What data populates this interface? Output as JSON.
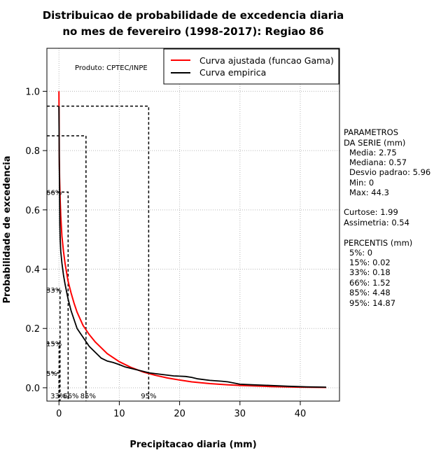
{
  "chart_data": {
    "type": "line",
    "title": [
      "Distribuicao de probabilidade de excedencia diaria",
      "no mes de fevereiro (1998-2017): Regiao 86"
    ],
    "xlabel": "Precipitacao diaria (mm)",
    "ylabel": "Probabilidade de excedencia",
    "xlim": [
      -2,
      46.5
    ],
    "ylim": [
      -0.045,
      1.145
    ],
    "x_ticks": [
      0,
      10,
      20,
      30,
      40
    ],
    "x_tick_labels": [
      "0",
      "10",
      "20",
      "30",
      "40"
    ],
    "y_ticks": [
      0.0,
      0.2,
      0.4,
      0.6,
      0.8,
      1.0
    ],
    "y_tick_labels": [
      "0.0",
      "0.2",
      "0.4",
      "0.6",
      "0.8",
      "1.0"
    ],
    "grid": true,
    "product_label": "Produto: CPTEC/INPE",
    "legend": {
      "position": "top-right",
      "entries": [
        {
          "label": "Curva ajustada (funcao Gama)",
          "color": "#ff0000"
        },
        {
          "label": "Curva empirica",
          "color": "#000000"
        }
      ]
    },
    "series": [
      {
        "name": "Curva ajustada (funcao Gama)",
        "color": "#ff0000",
        "x": [
          0,
          0.05,
          0.1,
          0.2,
          0.3,
          0.5,
          0.75,
          1.0,
          1.5,
          2,
          2.5,
          3,
          4,
          5,
          6,
          7,
          8,
          10,
          12,
          14,
          16,
          18,
          20,
          22,
          25,
          28,
          30,
          35,
          40,
          44.3
        ],
        "y": [
          1.0,
          0.78,
          0.71,
          0.63,
          0.58,
          0.51,
          0.46,
          0.42,
          0.36,
          0.32,
          0.285,
          0.255,
          0.21,
          0.18,
          0.155,
          0.135,
          0.115,
          0.088,
          0.068,
          0.053,
          0.042,
          0.033,
          0.026,
          0.02,
          0.014,
          0.01,
          0.008,
          0.004,
          0.002,
          0.001
        ]
      },
      {
        "name": "Curva empirica",
        "color": "#000000",
        "x": [
          0,
          0.05,
          0.1,
          0.15,
          0.2,
          0.3,
          0.5,
          0.75,
          1.0,
          1.5,
          2,
          2.5,
          3,
          3.5,
          4,
          5,
          6,
          7,
          8,
          9,
          10,
          11,
          12,
          13,
          14,
          15,
          17,
          19,
          21,
          22,
          23,
          25,
          27,
          28,
          30,
          32,
          35,
          38,
          41,
          44.3
        ],
        "y": [
          0.95,
          0.75,
          0.66,
          0.55,
          0.5,
          0.46,
          0.42,
          0.38,
          0.35,
          0.3,
          0.26,
          0.23,
          0.2,
          0.185,
          0.17,
          0.14,
          0.12,
          0.1,
          0.09,
          0.085,
          0.078,
          0.07,
          0.065,
          0.06,
          0.055,
          0.05,
          0.045,
          0.04,
          0.038,
          0.035,
          0.03,
          0.025,
          0.022,
          0.02,
          0.012,
          0.01,
          0.008,
          0.005,
          0.003,
          0.002
        ]
      }
    ],
    "percentile_markers": [
      {
        "label": "5%",
        "x": 0,
        "y": 0.05,
        "x_label": "33%"
      },
      {
        "label": "15%",
        "x": 0.02,
        "y": 0.15,
        "x_label": "66%"
      },
      {
        "label": "33%",
        "x": 0.18,
        "y": 0.33,
        "x_label": ""
      },
      {
        "label": "66%",
        "x": 1.52,
        "y": 0.66,
        "x_label": ""
      },
      {
        "label": "85%",
        "x": 4.48,
        "y": 0.0,
        "x_label": "85%"
      },
      {
        "label": "95%",
        "x": 14.87,
        "y": 0.0,
        "x_label": "95%"
      }
    ],
    "stats_panel": {
      "header1": "PARAMETROS",
      "header2": "DA SERIE (mm)",
      "lines": [
        "Media: 2.75",
        "Mediana: 0.57",
        "Desvio padrao: 5.96",
        "Min: 0",
        "Max: 44.3"
      ],
      "extra": [
        "Curtose: 1.99",
        "Assimetria: 0.54"
      ],
      "perc_header": "PERCENTIS (mm)",
      "perc_lines": [
        "5%: 0",
        "15%: 0.02",
        "33%: 0.18",
        "66%: 1.52",
        "85%: 4.48",
        "95%: 14.87"
      ]
    }
  }
}
